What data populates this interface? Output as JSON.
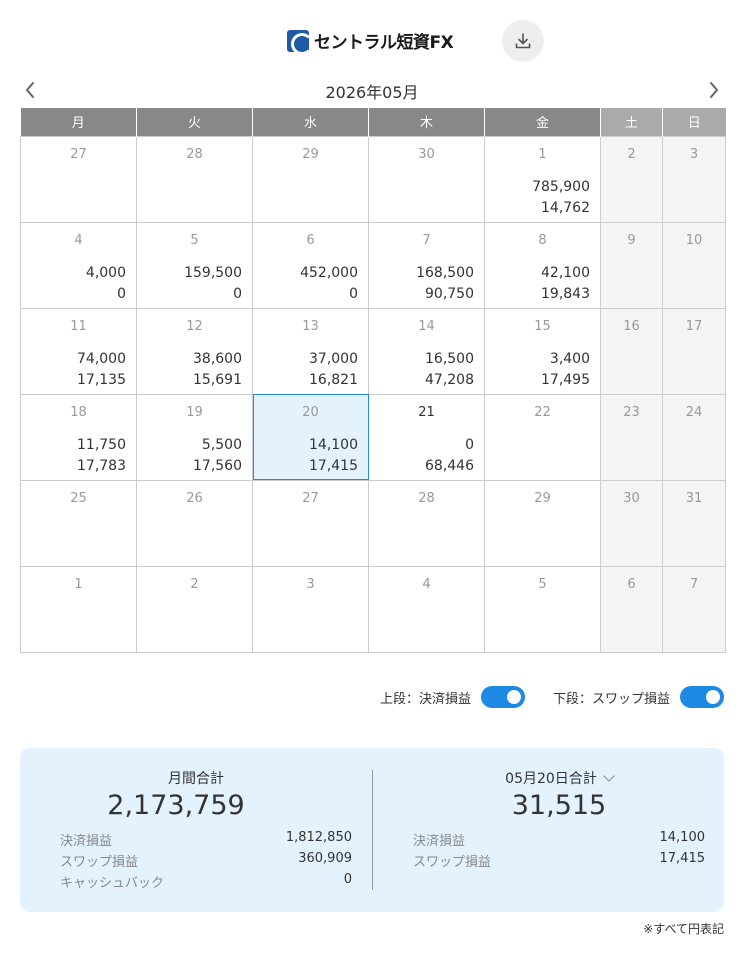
{
  "header": {
    "logo_text": "セントラル短資FX",
    "download_icon": "download-icon"
  },
  "calendar": {
    "month_title": "2026年05月",
    "weekdays": [
      "月",
      "火",
      "水",
      "木",
      "金",
      "土",
      "日"
    ],
    "weeks": [
      [
        {
          "day": "27",
          "active": false,
          "top": "",
          "bottom": ""
        },
        {
          "day": "28",
          "active": false,
          "top": "",
          "bottom": ""
        },
        {
          "day": "29",
          "active": false,
          "top": "",
          "bottom": ""
        },
        {
          "day": "30",
          "active": false,
          "top": "",
          "bottom": ""
        },
        {
          "day": "1",
          "active": false,
          "top": "785,900",
          "bottom": "14,762"
        },
        {
          "day": "2",
          "active": false,
          "top": "",
          "bottom": ""
        },
        {
          "day": "3",
          "active": false,
          "top": "",
          "bottom": ""
        }
      ],
      [
        {
          "day": "4",
          "active": false,
          "top": "4,000",
          "bottom": "0"
        },
        {
          "day": "5",
          "active": false,
          "top": "159,500",
          "bottom": "0"
        },
        {
          "day": "6",
          "active": false,
          "top": "452,000",
          "bottom": "0"
        },
        {
          "day": "7",
          "active": false,
          "top": "168,500",
          "bottom": "90,750"
        },
        {
          "day": "8",
          "active": false,
          "top": "42,100",
          "bottom": "19,843"
        },
        {
          "day": "9",
          "active": false,
          "top": "",
          "bottom": ""
        },
        {
          "day": "10",
          "active": false,
          "top": "",
          "bottom": ""
        }
      ],
      [
        {
          "day": "11",
          "active": false,
          "top": "74,000",
          "bottom": "17,135"
        },
        {
          "day": "12",
          "active": false,
          "top": "38,600",
          "bottom": "15,691"
        },
        {
          "day": "13",
          "active": false,
          "top": "37,000",
          "bottom": "16,821"
        },
        {
          "day": "14",
          "active": false,
          "top": "16,500",
          "bottom": "47,208"
        },
        {
          "day": "15",
          "active": false,
          "top": "3,400",
          "bottom": "17,495"
        },
        {
          "day": "16",
          "active": false,
          "top": "",
          "bottom": ""
        },
        {
          "day": "17",
          "active": false,
          "top": "",
          "bottom": ""
        }
      ],
      [
        {
          "day": "18",
          "active": false,
          "top": "11,750",
          "bottom": "17,783"
        },
        {
          "day": "19",
          "active": false,
          "top": "5,500",
          "bottom": "17,560"
        },
        {
          "day": "20",
          "active": false,
          "selected": true,
          "top": "14,100",
          "bottom": "17,415"
        },
        {
          "day": "21",
          "active": true,
          "top": "0",
          "bottom": "68,446"
        },
        {
          "day": "22",
          "active": false,
          "top": "",
          "bottom": ""
        },
        {
          "day": "23",
          "active": false,
          "top": "",
          "bottom": ""
        },
        {
          "day": "24",
          "active": false,
          "top": "",
          "bottom": ""
        }
      ],
      [
        {
          "day": "25",
          "active": false,
          "top": "",
          "bottom": ""
        },
        {
          "day": "26",
          "active": false,
          "top": "",
          "bottom": ""
        },
        {
          "day": "27",
          "active": false,
          "top": "",
          "bottom": ""
        },
        {
          "day": "28",
          "active": false,
          "top": "",
          "bottom": ""
        },
        {
          "day": "29",
          "active": false,
          "top": "",
          "bottom": ""
        },
        {
          "day": "30",
          "active": false,
          "top": "",
          "bottom": ""
        },
        {
          "day": "31",
          "active": false,
          "top": "",
          "bottom": ""
        }
      ],
      [
        {
          "day": "1",
          "active": false,
          "top": "",
          "bottom": ""
        },
        {
          "day": "2",
          "active": false,
          "top": "",
          "bottom": ""
        },
        {
          "day": "3",
          "active": false,
          "top": "",
          "bottom": ""
        },
        {
          "day": "4",
          "active": false,
          "top": "",
          "bottom": ""
        },
        {
          "day": "5",
          "active": false,
          "top": "",
          "bottom": ""
        },
        {
          "day": "6",
          "active": false,
          "top": "",
          "bottom": ""
        },
        {
          "day": "7",
          "active": false,
          "top": "",
          "bottom": ""
        }
      ]
    ]
  },
  "toggles": {
    "upper_label": "上段：決済損益",
    "upper_on": true,
    "lower_label": "下段：スワップ損益",
    "lower_on": true
  },
  "summary": {
    "monthly": {
      "title": "月間合計",
      "total": "2,173,759",
      "rows": [
        {
          "label": "決済損益",
          "value": "1,812,850"
        },
        {
          "label": "スワップ損益",
          "value": "360,909"
        },
        {
          "label": "キャッシュバック",
          "value": "0"
        }
      ]
    },
    "daily": {
      "title": "05月20日合計",
      "total": "31,515",
      "rows": [
        {
          "label": "決済損益",
          "value": "14,100"
        },
        {
          "label": "スワップ損益",
          "value": "17,415"
        }
      ]
    }
  },
  "footnote": "※すべて円表記",
  "colors": {
    "header_bg": "#888888",
    "weekend_header_bg": "#aaaaaa",
    "accent": "#1e88e5",
    "summary_bg": "#e3f2fd"
  }
}
